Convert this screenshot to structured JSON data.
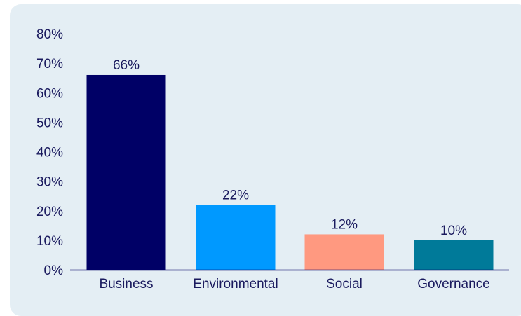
{
  "chart_data": {
    "type": "bar",
    "title": "",
    "xlabel": "",
    "ylabel": "",
    "categories": [
      "Business",
      "Environmental",
      "Social",
      "Governance"
    ],
    "values": [
      66,
      22,
      12,
      10
    ],
    "value_labels": [
      "66%",
      "22%",
      "12%",
      "10%"
    ],
    "bar_colors": [
      "#000066",
      "#0099ff",
      "#ff9980",
      "#007a99"
    ],
    "ylim": [
      0,
      80
    ],
    "yticks": [
      0,
      10,
      20,
      30,
      40,
      50,
      60,
      70,
      80
    ],
    "ytick_labels": [
      "0%",
      "10%",
      "20%",
      "30%",
      "40%",
      "50%",
      "60%",
      "70%",
      "80%"
    ],
    "grid": false,
    "legend": "none",
    "axis_color": "#000066",
    "text_color": "#1a1a5e",
    "background_color": "#e4eef4"
  }
}
